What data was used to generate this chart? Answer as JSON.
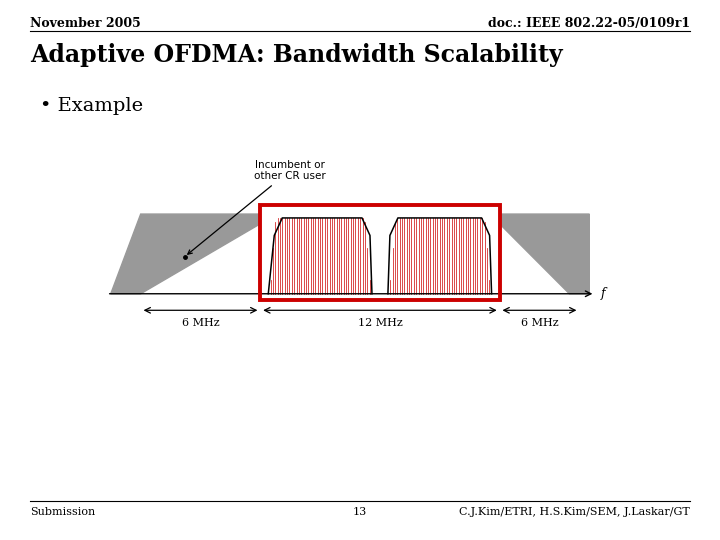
{
  "header_left": "November 2005",
  "header_right": "doc.: IEEE 802.22-05/0109r1",
  "title": "Adaptive OFDMA: Bandwidth Scalability",
  "bullet": "Example",
  "footer_left": "Submission",
  "footer_center": "13",
  "footer_right": "C.J.Kim/ETRI, H.S.Kim/SEM, J.Laskar/GT",
  "incumbent_label": "Incumbent or\nother CR user",
  "label_6mhz_left": "6 MHz",
  "label_12mhz": "12 MHz",
  "label_6mhz_right": "6 MHz",
  "freq_label": "f",
  "bg_color": "#ffffff",
  "gray_color": "#999999",
  "red_color": "#cc0000",
  "red_box_color": "#cc0000",
  "header_fontsize": 9,
  "title_fontsize": 17,
  "bullet_fontsize": 14,
  "footer_fontsize": 8,
  "diagram_fontsize": 8
}
